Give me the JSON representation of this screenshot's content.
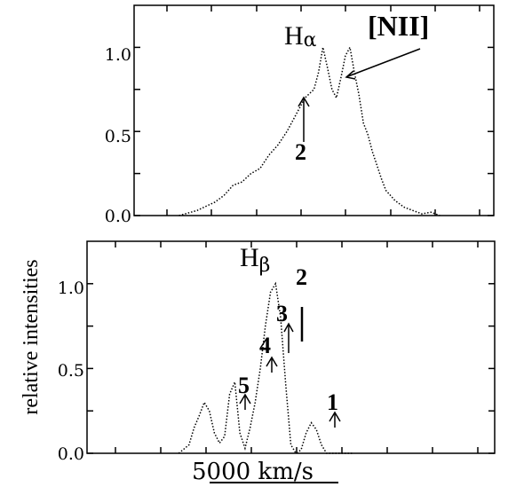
{
  "figure": {
    "ylabel": "relative intensities",
    "xlabel": "5000 km/s"
  },
  "chart_data": [
    {
      "type": "line",
      "panel": "top",
      "title_main": "H",
      "title_sub": "α",
      "ylim": [
        0.0,
        1.25
      ],
      "yticks": [
        "0.0",
        "0.5",
        "1.0"
      ],
      "series": [
        {
          "style": "dotted",
          "x": [
            -1.5,
            -1.3,
            -1.1,
            -1.0,
            -0.9,
            -0.8,
            -0.7,
            -0.6,
            -0.5,
            -0.4,
            -0.3,
            -0.2,
            -0.1,
            0.0,
            0.05,
            0.1,
            0.15,
            0.2,
            0.25,
            0.3,
            0.35,
            0.4,
            0.45,
            0.5,
            0.55,
            0.6,
            0.65,
            0.7,
            0.75,
            0.8,
            0.9,
            1.0,
            1.1,
            1.2,
            1.3,
            1.4
          ],
          "y": [
            0.0,
            0.03,
            0.08,
            0.12,
            0.18,
            0.2,
            0.25,
            0.28,
            0.36,
            0.42,
            0.5,
            0.6,
            0.7,
            0.75,
            0.85,
            1.0,
            0.88,
            0.75,
            0.7,
            0.82,
            0.95,
            1.0,
            0.85,
            0.72,
            0.55,
            0.48,
            0.38,
            0.3,
            0.22,
            0.15,
            0.09,
            0.05,
            0.03,
            0.01,
            0.02,
            0.0
          ]
        }
      ],
      "annotations": [
        {
          "text": "2",
          "target": "Hα peak"
        },
        {
          "text": "[NII]",
          "target": "[NII] peak"
        }
      ]
    },
    {
      "type": "line",
      "panel": "bottom",
      "title_main": "H",
      "title_sub": "β",
      "ylim": [
        0.0,
        1.25
      ],
      "yticks": [
        "0.0",
        "0.5",
        "1.0"
      ],
      "series": [
        {
          "style": "dotted",
          "x": [
            -1.1,
            -1.0,
            -0.95,
            -0.9,
            -0.85,
            -0.8,
            -0.75,
            -0.7,
            -0.65,
            -0.6,
            -0.55,
            -0.5,
            -0.45,
            -0.4,
            -0.35,
            -0.3,
            -0.25,
            -0.2,
            -0.15,
            -0.1,
            -0.05,
            0.0,
            0.05,
            0.1,
            0.15,
            0.2,
            0.25,
            0.3,
            0.35,
            0.4,
            0.45,
            0.5,
            0.55,
            0.6
          ],
          "y": [
            0.0,
            0.05,
            0.15,
            0.22,
            0.3,
            0.25,
            0.12,
            0.06,
            0.1,
            0.35,
            0.42,
            0.12,
            0.03,
            0.15,
            0.3,
            0.5,
            0.75,
            0.95,
            1.0,
            0.8,
            0.4,
            0.05,
            0.0,
            0.02,
            0.12,
            0.18,
            0.14,
            0.05,
            0.0,
            0.0,
            0.0,
            0.0,
            0.0,
            0.0
          ]
        }
      ],
      "annotations": [
        {
          "text": "1"
        },
        {
          "text": "2"
        },
        {
          "text": "3"
        },
        {
          "text": "4"
        },
        {
          "text": "5"
        }
      ]
    }
  ]
}
